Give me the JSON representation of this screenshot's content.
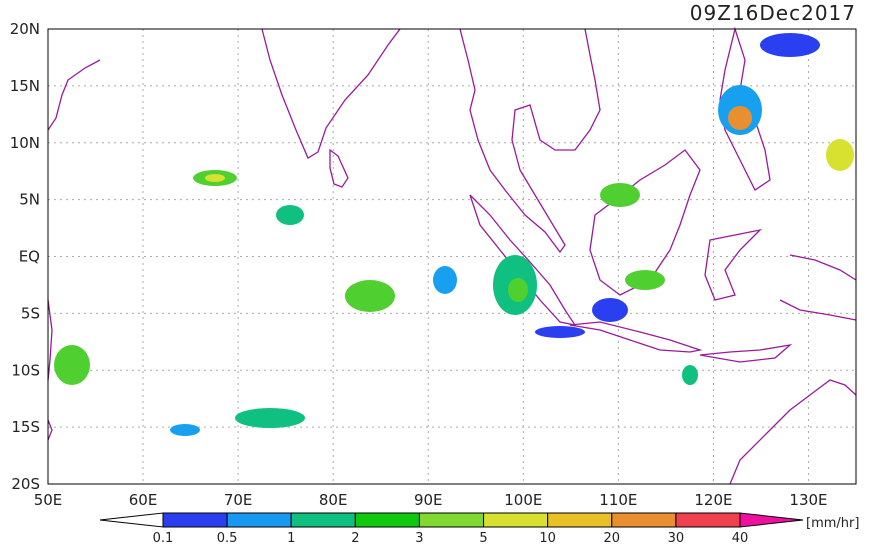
{
  "title": "09Z16Dec2017",
  "lat_labels": [
    "20N",
    "15N",
    "10N",
    "5N",
    "EQ",
    "5S",
    "10S",
    "15S",
    "20S"
  ],
  "lon_labels": [
    "50E",
    "60E",
    "70E",
    "80E",
    "90E",
    "100E",
    "110E",
    "120E",
    "130E"
  ],
  "colorbar": {
    "labels": [
      "0.1",
      "0.5",
      "1",
      "2",
      "3",
      "5",
      "10",
      "20",
      "30",
      "40"
    ],
    "unit": "[mm/hr]"
  }
}
